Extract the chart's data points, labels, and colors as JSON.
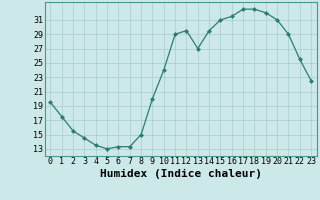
{
  "x": [
    0,
    1,
    2,
    3,
    4,
    5,
    6,
    7,
    8,
    9,
    10,
    11,
    12,
    13,
    14,
    15,
    16,
    17,
    18,
    19,
    20,
    21,
    22,
    23
  ],
  "y": [
    19.5,
    17.5,
    15.5,
    14.5,
    13.5,
    13.0,
    13.3,
    13.3,
    15.0,
    20.0,
    24.0,
    29.0,
    29.5,
    27.0,
    29.5,
    31.0,
    31.5,
    32.5,
    32.5,
    32.0,
    31.0,
    29.0,
    25.5,
    22.5
  ],
  "xlabel": "Humidex (Indice chaleur)",
  "ytick_labels": [
    "13",
    "15",
    "17",
    "19",
    "21",
    "23",
    "25",
    "27",
    "29",
    "31"
  ],
  "ytick_values": [
    13,
    15,
    17,
    19,
    21,
    23,
    25,
    27,
    29,
    31
  ],
  "ylim": [
    12.0,
    33.5
  ],
  "xlim": [
    -0.5,
    23.5
  ],
  "line_color": "#2d7d6e",
  "marker_color": "#2d7d6e",
  "bg_color": "#cce8e8",
  "grid_color": "#a8cccc",
  "tick_fontsize": 6,
  "label_fontsize": 8
}
